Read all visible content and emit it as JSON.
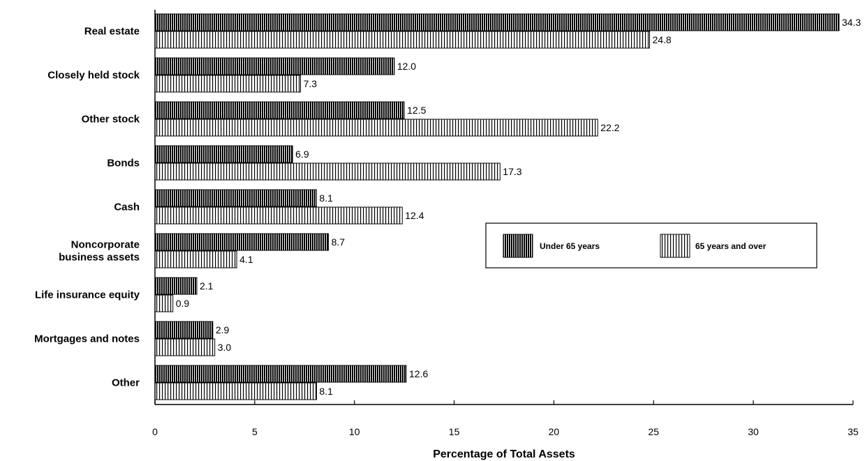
{
  "chart_data": {
    "type": "bar",
    "orientation": "horizontal",
    "categories": [
      "Real estate",
      "Closely held stock",
      "Other stock",
      "Bonds",
      "Cash",
      "Noncorporate\nbusiness assets",
      "Life insurance equity",
      "Mortgages and notes",
      "Other"
    ],
    "series": [
      {
        "name": "Under 65 years",
        "values": [
          34.3,
          12.0,
          12.5,
          6.9,
          8.1,
          8.7,
          2.1,
          2.9,
          12.6
        ],
        "labels": [
          "34.3",
          "12.0",
          "12.5",
          "6.9",
          "8.1",
          "8.7",
          "2.1",
          "2.9",
          "12.6"
        ],
        "pattern": "dense-vertical-stripes"
      },
      {
        "name": "65 years and over",
        "values": [
          24.8,
          7.3,
          22.2,
          17.3,
          12.4,
          4.1,
          0.9,
          3.0,
          8.1
        ],
        "labels": [
          "24.8",
          "7.3",
          "22.2",
          "17.3",
          "12.4",
          "4.1",
          "0.9",
          "3.0",
          "8.1"
        ],
        "pattern": "light-vertical-stripes"
      }
    ],
    "xlabel": "Percentage of Total Assets",
    "ylabel": "",
    "xlim": [
      0,
      35
    ],
    "xticks": [
      "0",
      "5",
      "10",
      "15",
      "20",
      "25",
      "30",
      "35"
    ],
    "grid": false,
    "legend_position": "right-center"
  }
}
